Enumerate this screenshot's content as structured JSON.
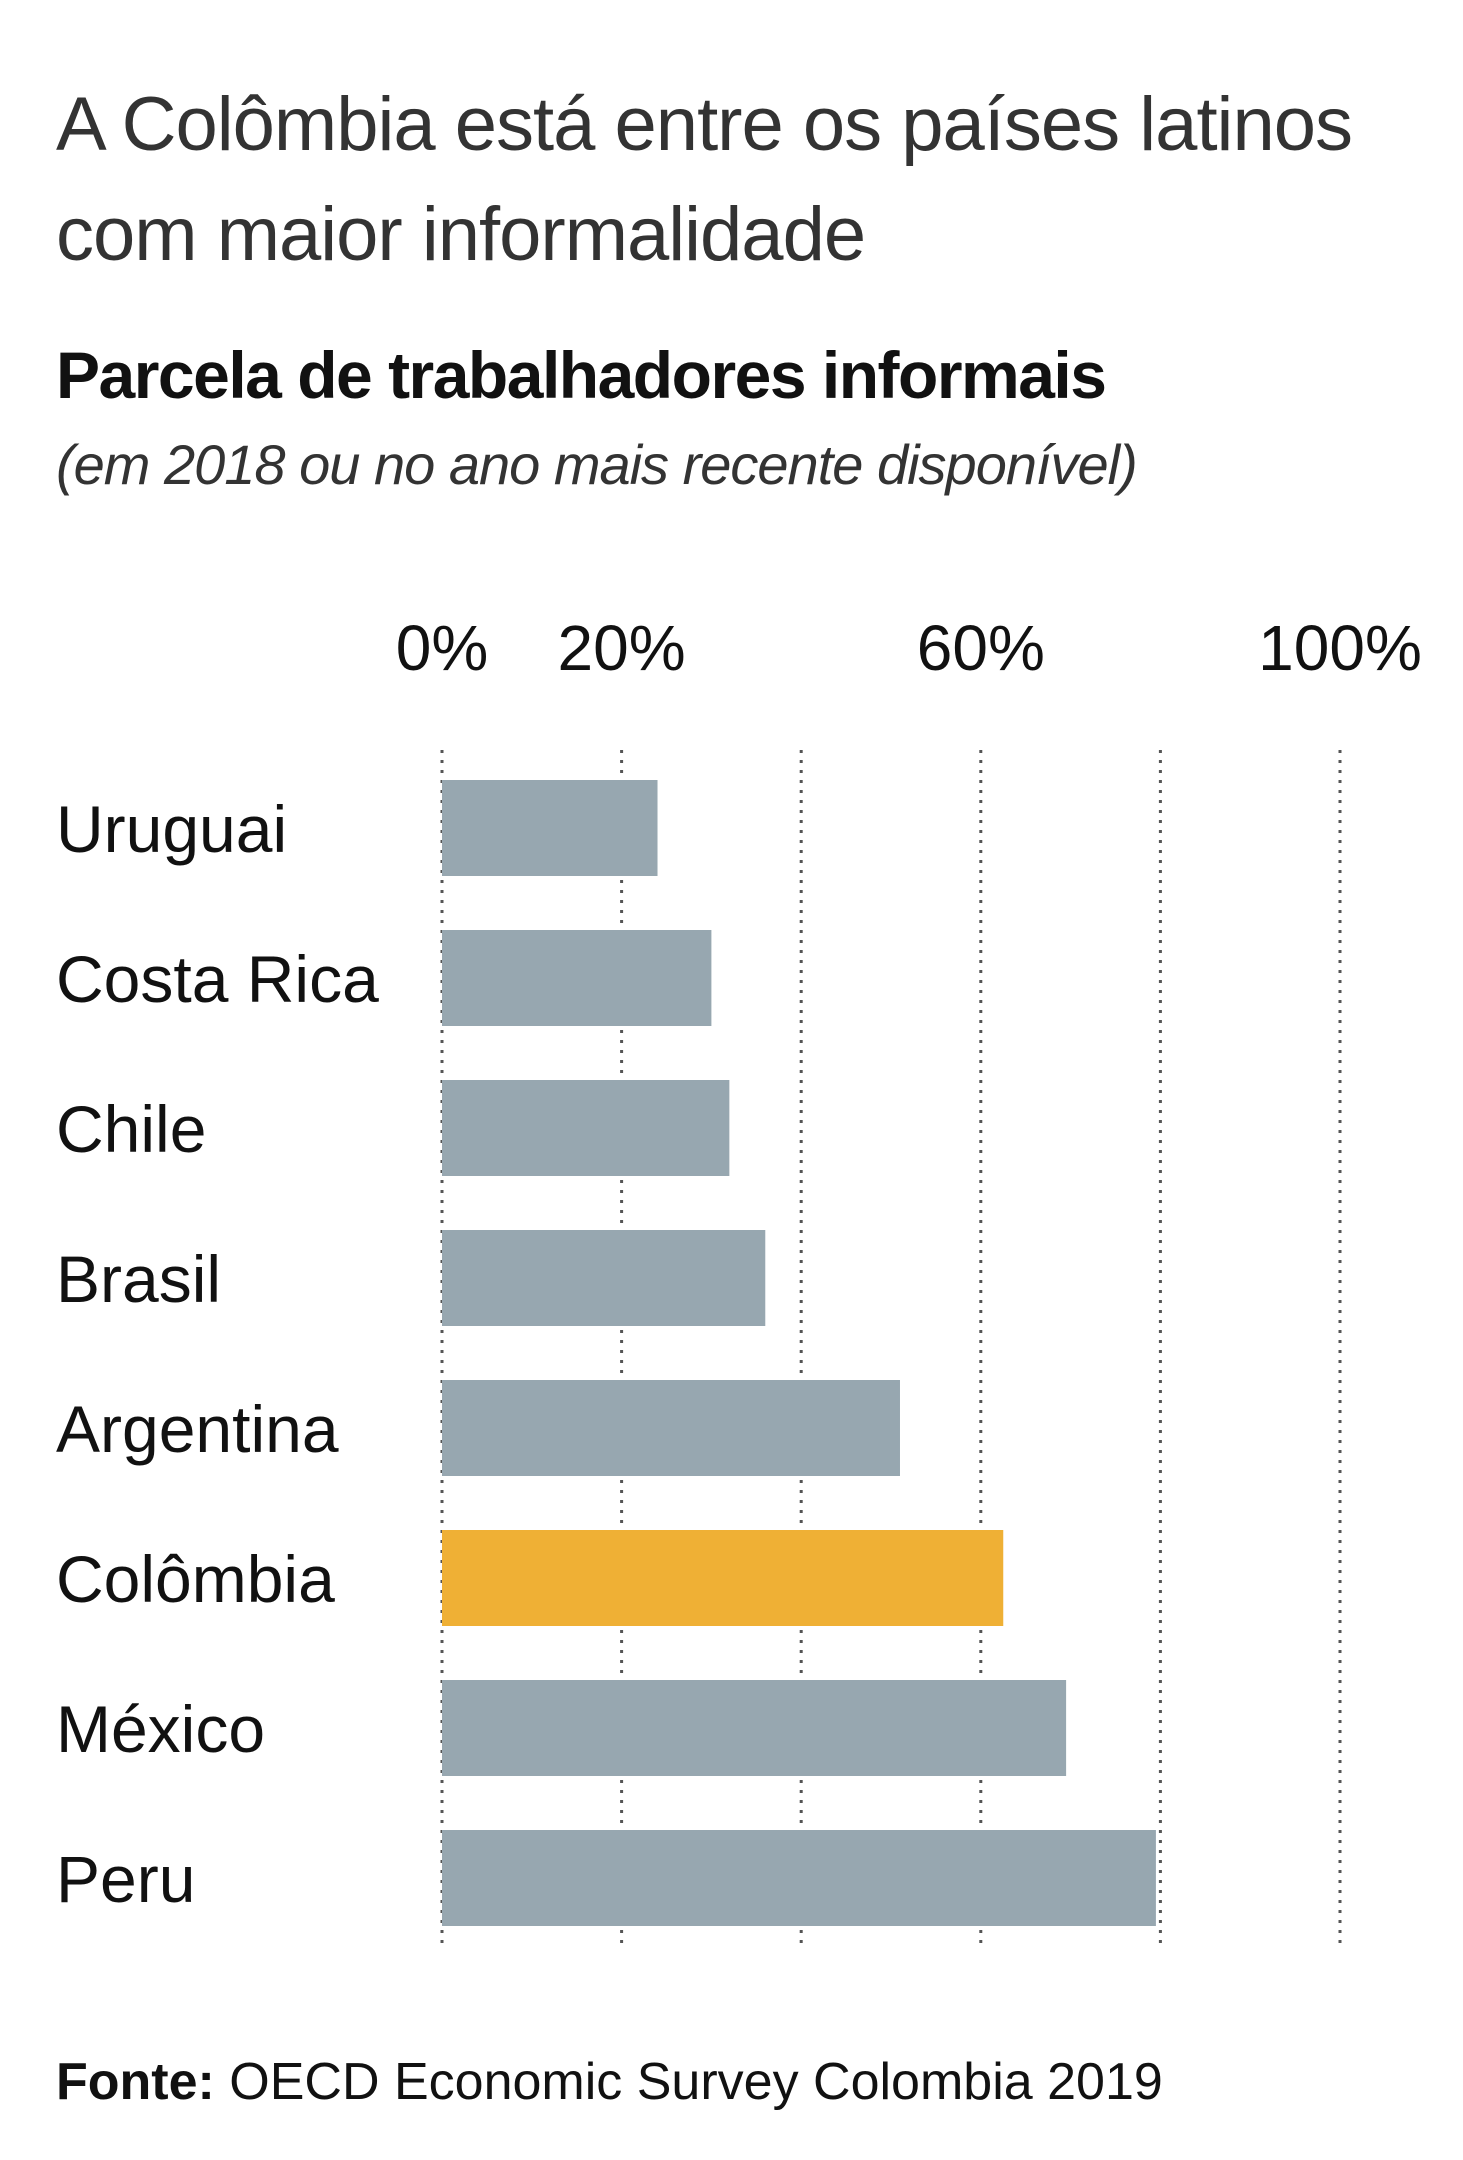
{
  "header": {
    "title": "A Colômbia está entre os países latinos com maior informalidade",
    "subtitle": "Parcela de trabalhadores informais",
    "note": "(em 2018 ou no ano mais recente disponível)"
  },
  "footer": {
    "source_label": "Fonte:",
    "source_text": "OECD Economic Survey Colombia 2019"
  },
  "colors": {
    "default_bar": "#97a7b0",
    "highlight_bar": "#efb035",
    "gridline": "#555555"
  },
  "chart_data": {
    "type": "bar",
    "orientation": "horizontal",
    "title": "Parcela de trabalhadores informais",
    "subtitle": "(em 2018 ou no ano mais recente disponível)",
    "xlabel": "",
    "ylabel": "",
    "xlim": [
      0,
      100
    ],
    "ticks": [
      0,
      20,
      40,
      60,
      80,
      100
    ],
    "tick_labels": [
      "0%",
      "20%",
      "",
      "60%",
      "",
      "100%"
    ],
    "grid": true,
    "categories": [
      "Uruguai",
      "Costa Rica",
      "Chile",
      "Brasil",
      "Argentina",
      "Colômbia",
      "México",
      "Peru"
    ],
    "values": [
      24,
      30,
      32,
      36,
      51,
      62.5,
      69.5,
      79.5
    ],
    "highlight": "Colômbia"
  }
}
